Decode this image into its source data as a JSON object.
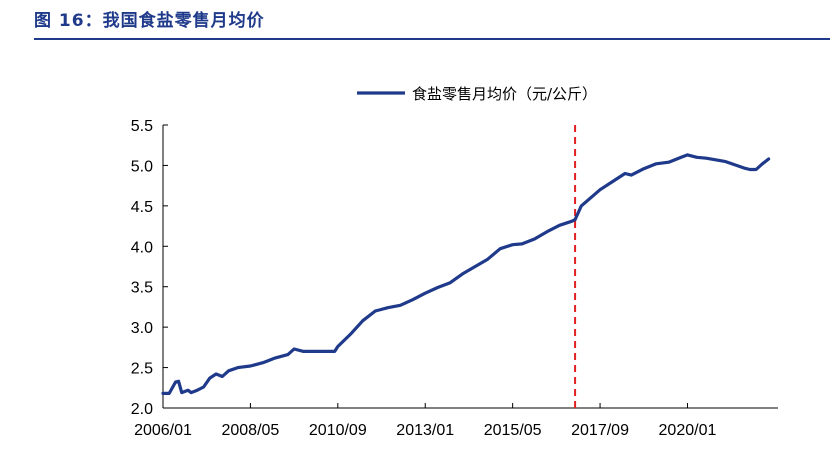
{
  "figure": {
    "title": "图 16：我国食盐零售月均价"
  },
  "chart_data": {
    "type": "line",
    "title": "",
    "xlabel": "",
    "ylabel": "",
    "ylim": [
      2.0,
      5.5
    ],
    "yticks": [
      "2.0",
      "2.5",
      "3.0",
      "3.5",
      "4.0",
      "4.5",
      "5.0",
      "5.5"
    ],
    "xticks": [
      "2006/01",
      "2008/05",
      "2010/09",
      "2013/01",
      "2015/05",
      "2017/09",
      "2020/01"
    ],
    "legend_position": "top-center",
    "series": [
      {
        "name": "食盐零售月均价（元/公斤）",
        "color": "#1f3a8a",
        "points": [
          [
            "2006/01",
            2.18
          ],
          [
            "2006/03",
            2.18
          ],
          [
            "2006/05",
            2.32
          ],
          [
            "2006/06",
            2.33
          ],
          [
            "2006/07",
            2.19
          ],
          [
            "2006/09",
            2.22
          ],
          [
            "2006/10",
            2.19
          ],
          [
            "2006/12",
            2.22
          ],
          [
            "2007/02",
            2.26
          ],
          [
            "2007/04",
            2.37
          ],
          [
            "2007/06",
            2.42
          ],
          [
            "2007/08",
            2.39
          ],
          [
            "2007/10",
            2.46
          ],
          [
            "2008/01",
            2.5
          ],
          [
            "2008/05",
            2.52
          ],
          [
            "2008/09",
            2.56
          ],
          [
            "2009/01",
            2.62
          ],
          [
            "2009/05",
            2.66
          ],
          [
            "2009/07",
            2.73
          ],
          [
            "2009/10",
            2.7
          ],
          [
            "2010/03",
            2.7
          ],
          [
            "2010/08",
            2.7
          ],
          [
            "2010/09",
            2.76
          ],
          [
            "2011/01",
            2.91
          ],
          [
            "2011/05",
            3.08
          ],
          [
            "2011/09",
            3.2
          ],
          [
            "2012/01",
            3.24
          ],
          [
            "2012/05",
            3.27
          ],
          [
            "2012/09",
            3.34
          ],
          [
            "2013/01",
            3.42
          ],
          [
            "2013/05",
            3.49
          ],
          [
            "2013/09",
            3.55
          ],
          [
            "2014/01",
            3.66
          ],
          [
            "2014/05",
            3.75
          ],
          [
            "2014/09",
            3.84
          ],
          [
            "2015/01",
            3.97
          ],
          [
            "2015/05",
            4.02
          ],
          [
            "2015/08",
            4.03
          ],
          [
            "2015/12",
            4.09
          ],
          [
            "2016/04",
            4.18
          ],
          [
            "2016/08",
            4.26
          ],
          [
            "2016/12",
            4.31
          ],
          [
            "2017/01",
            4.33
          ],
          [
            "2017/03",
            4.5
          ],
          [
            "2017/06",
            4.6
          ],
          [
            "2017/09",
            4.7
          ],
          [
            "2018/01",
            4.8
          ],
          [
            "2018/05",
            4.9
          ],
          [
            "2018/07",
            4.88
          ],
          [
            "2018/11",
            4.96
          ],
          [
            "2019/03",
            5.02
          ],
          [
            "2019/07",
            5.04
          ],
          [
            "2019/11",
            5.1
          ],
          [
            "2020/01",
            5.13
          ],
          [
            "2020/04",
            5.1
          ],
          [
            "2020/07",
            5.09
          ],
          [
            "2020/10",
            5.07
          ],
          [
            "2021/01",
            5.05
          ],
          [
            "2021/04",
            5.01
          ],
          [
            "2021/07",
            4.97
          ],
          [
            "2021/09",
            4.95
          ],
          [
            "2021/11",
            4.95
          ],
          [
            "2022/01",
            5.02
          ],
          [
            "2022/03",
            5.08
          ]
        ]
      }
    ],
    "annotations": [
      {
        "type": "vertical-dashed-line",
        "x": "2017/01",
        "color": "#e02020"
      }
    ]
  }
}
